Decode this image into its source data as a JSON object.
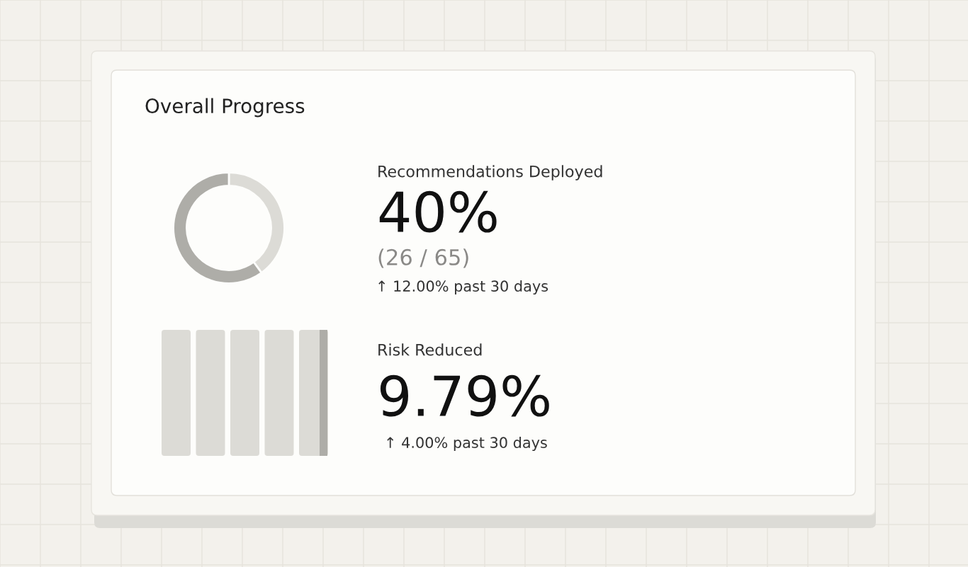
{
  "chart_data": [
    {
      "type": "donut",
      "title": "Overall Progress",
      "categories": [
        null,
        null
      ],
      "values": [
        40,
        60
      ],
      "colors": [
        "#dcdbd6",
        "#aeada8"
      ],
      "annotations": [
        "Recommendations Deployed",
        "40%",
        "(26 / 65)",
        "↑ 12.00% past 30 days"
      ]
    },
    {
      "type": "other",
      "annotations": [
        "Risk Reduced",
        "9.79%",
        "↑ 4.00% past 30 days"
      ]
    }
  ]
}
